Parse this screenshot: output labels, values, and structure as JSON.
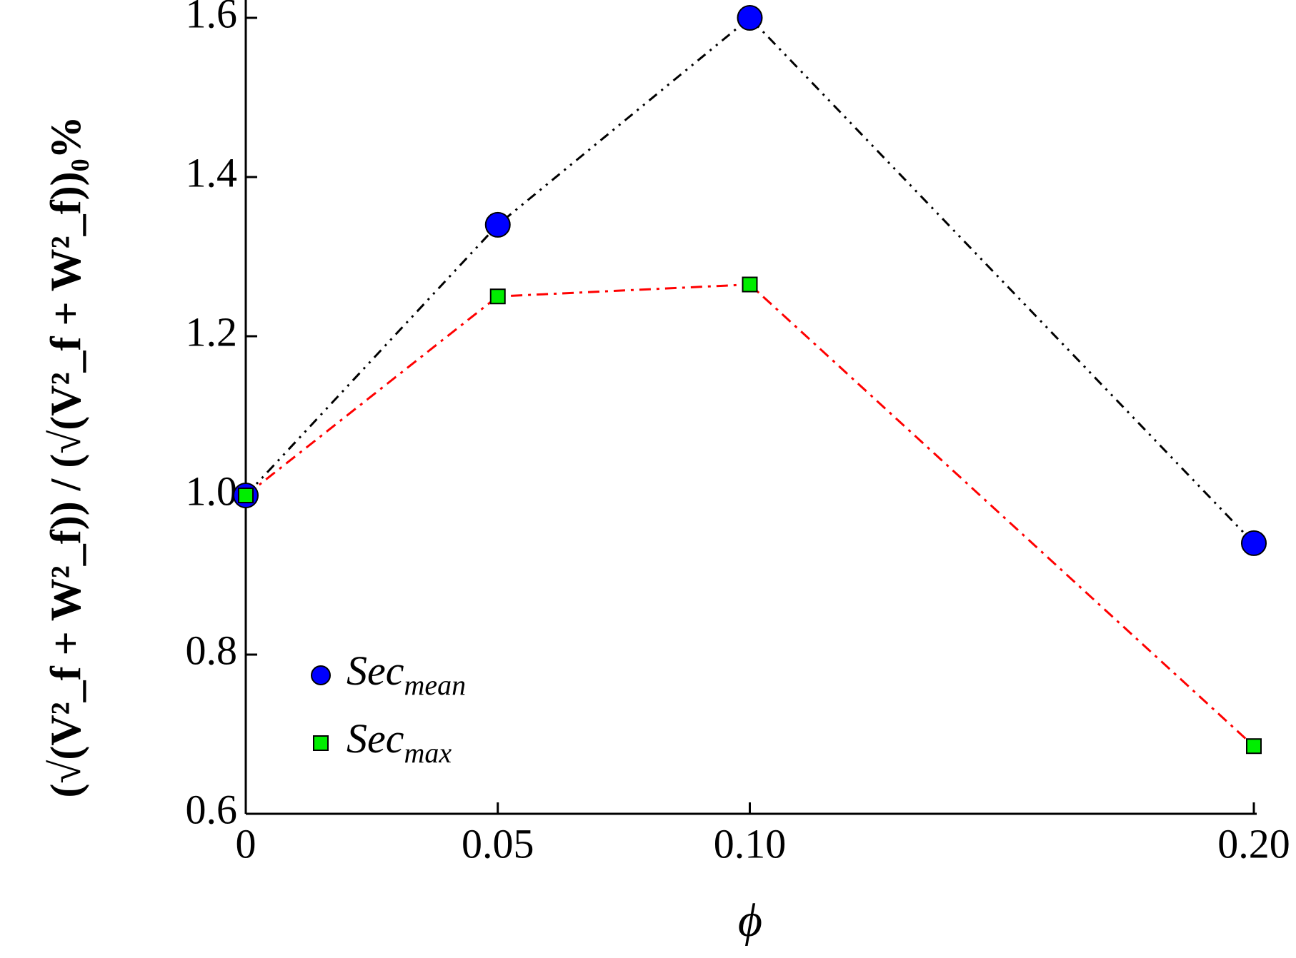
{
  "chart_data": {
    "type": "line",
    "x_label": "ϕ",
    "y_label": "(√(V²_f + W²_f)) / (√(V²_f + W²_f))₀%",
    "x": [
      0,
      0.05,
      0.1,
      0.2
    ],
    "series": [
      {
        "name": "Sec",
        "name_subscript": "mean",
        "color": "#0000ff",
        "line_color": "#000000",
        "marker": "circle",
        "values": [
          1.0,
          1.34,
          1.6,
          0.94
        ]
      },
      {
        "name": "Sec",
        "name_subscript": "max",
        "color": "#00ee00",
        "line_color": "#ff0000",
        "marker": "square",
        "values": [
          1.0,
          1.25,
          1.265,
          0.685
        ]
      }
    ],
    "xlim": [
      0,
      0.2
    ],
    "xticks": [
      0,
      0.05,
      {
        "value": 0.1,
        "label": "0.10"
      },
      {
        "value": 0.2,
        "label": "0.20"
      }
    ],
    "ylim": [
      0.6,
      1.6
    ],
    "yticks": [
      0.6,
      0.8,
      {
        "value": 1,
        "label": "1.0"
      },
      1.2,
      1.4,
      1.6
    ],
    "grid": false,
    "legend": "lower left"
  }
}
